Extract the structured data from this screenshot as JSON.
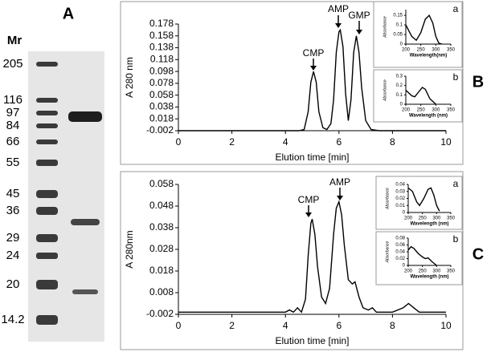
{
  "gel": {
    "title": "A",
    "header": "Mr",
    "markers": [
      "205",
      "116",
      "97",
      "84",
      "66",
      "55",
      "45",
      "36",
      "29",
      "24",
      "20",
      "14.2"
    ]
  },
  "chart_data": [
    {
      "type": "line",
      "label": "B",
      "ylabel": "A 280 nm",
      "xlabel": "Elution time [min]",
      "annotations": [
        "CMP",
        "AMP",
        "GMP"
      ],
      "xlim": [
        0,
        10
      ],
      "xticks": [
        0,
        2,
        4,
        6,
        8,
        10
      ],
      "ylim": [
        -0.002,
        0.178
      ],
      "yticks": [
        -0.002,
        0.018,
        0.038,
        0.058,
        0.078,
        0.098,
        0.118,
        0.138,
        0.158,
        0.178
      ],
      "x": [
        0,
        4.5,
        4.7,
        4.85,
        4.95,
        5.05,
        5.15,
        5.25,
        5.4,
        5.55,
        5.7,
        5.8,
        5.9,
        6.0,
        6.05,
        6.15,
        6.25,
        6.35,
        6.45,
        6.55,
        6.65,
        6.75,
        6.85,
        7.0,
        7.2,
        7.5,
        10
      ],
      "values": [
        -0.002,
        -0.002,
        0.0,
        0.03,
        0.08,
        0.098,
        0.08,
        0.03,
        0.003,
        0.0,
        0.01,
        0.05,
        0.13,
        0.165,
        0.168,
        0.14,
        0.06,
        0.015,
        0.05,
        0.13,
        0.158,
        0.13,
        0.07,
        0.015,
        0.0,
        -0.002,
        -0.002
      ],
      "color": "#000000"
    },
    {
      "type": "line",
      "label": "a",
      "ylabel": "Absorbance",
      "xlabel": "Wavelength(nm)",
      "xlim": [
        200,
        350
      ],
      "xticks": [
        200,
        250,
        300,
        350
      ],
      "ylim": [
        0,
        0.18
      ],
      "yticks": [
        0,
        0.05,
        0.1,
        0.15
      ],
      "x": [
        200,
        210,
        220,
        235,
        250,
        265,
        278,
        290,
        300,
        310,
        320
      ],
      "values": [
        0.1,
        0.07,
        0.04,
        0.02,
        0.06,
        0.13,
        0.15,
        0.11,
        0.04,
        0.005,
        0
      ],
      "color": "#000000"
    },
    {
      "type": "line",
      "label": "b",
      "ylabel": "Absorbance",
      "xlabel": "Wavelength (nm)",
      "xlim": [
        200,
        350
      ],
      "xticks": [
        200,
        250,
        300,
        350
      ],
      "ylim": [
        0,
        0.3
      ],
      "yticks": [
        0,
        0.1,
        0.2,
        0.3
      ],
      "x": [
        200,
        210,
        220,
        230,
        240,
        255,
        265,
        280,
        300
      ],
      "values": [
        0.15,
        0.12,
        0.09,
        0.08,
        0.12,
        0.18,
        0.16,
        0.06,
        0.0
      ],
      "color": "#000000"
    },
    {
      "type": "line",
      "label": "C",
      "ylabel": "A 280nm",
      "xlabel": "Elution time [min]",
      "annotations": [
        "CMP",
        "AMP"
      ],
      "xlim": [
        0,
        10
      ],
      "xticks": [
        0,
        2,
        4,
        6,
        8,
        10
      ],
      "ylim": [
        -0.002,
        0.058
      ],
      "yticks": [
        -0.002,
        0.008,
        0.018,
        0.028,
        0.038,
        0.048,
        0.058
      ],
      "x": [
        0,
        4.0,
        4.15,
        4.3,
        4.45,
        4.6,
        4.75,
        4.85,
        4.95,
        5.0,
        5.1,
        5.2,
        5.35,
        5.5,
        5.65,
        5.8,
        5.9,
        6.0,
        6.1,
        6.2,
        6.35,
        6.5,
        6.6,
        6.75,
        6.9,
        7.1,
        7.25,
        7.4,
        8.0,
        8.4,
        8.6,
        8.8,
        9.0,
        10
      ],
      "values": [
        -0.001,
        -0.001,
        0.0,
        -0.001,
        0.001,
        -0.001,
        0.005,
        0.025,
        0.04,
        0.042,
        0.035,
        0.02,
        0.006,
        0.003,
        0.01,
        0.035,
        0.047,
        0.05,
        0.044,
        0.03,
        0.014,
        0.012,
        0.013,
        0.006,
        0.001,
        0.0,
        0.001,
        -0.001,
        -0.001,
        0.001,
        0.003,
        0.001,
        -0.001,
        -0.001
      ],
      "color": "#000000"
    },
    {
      "type": "line",
      "label": "a",
      "ylabel": "Absorbance",
      "xlabel": "Wavelength (nm)",
      "xlim": [
        200,
        350
      ],
      "xticks": [
        200,
        250,
        300,
        350
      ],
      "ylim": [
        0,
        0.04
      ],
      "yticks": [
        0,
        0.01,
        0.02,
        0.03,
        0.04
      ],
      "x": [
        200,
        215,
        230,
        240,
        255,
        270,
        280,
        290,
        300,
        310
      ],
      "values": [
        0.035,
        0.03,
        0.015,
        0.01,
        0.02,
        0.033,
        0.035,
        0.025,
        0.01,
        0.002
      ],
      "color": "#000000"
    },
    {
      "type": "line",
      "label": "b",
      "ylabel": "Absorbance",
      "xlabel": "Wavelength (nm)",
      "xlim": [
        200,
        350
      ],
      "xticks": [
        200,
        250,
        300,
        350
      ],
      "ylim": [
        0,
        0.08
      ],
      "yticks": [
        0,
        0.02,
        0.04,
        0.06,
        0.08
      ],
      "x": [
        200,
        210,
        220,
        235,
        250,
        260,
        270,
        285,
        300
      ],
      "values": [
        0.045,
        0.055,
        0.05,
        0.035,
        0.025,
        0.02,
        0.022,
        0.01,
        0.0
      ],
      "color": "#000000"
    }
  ]
}
